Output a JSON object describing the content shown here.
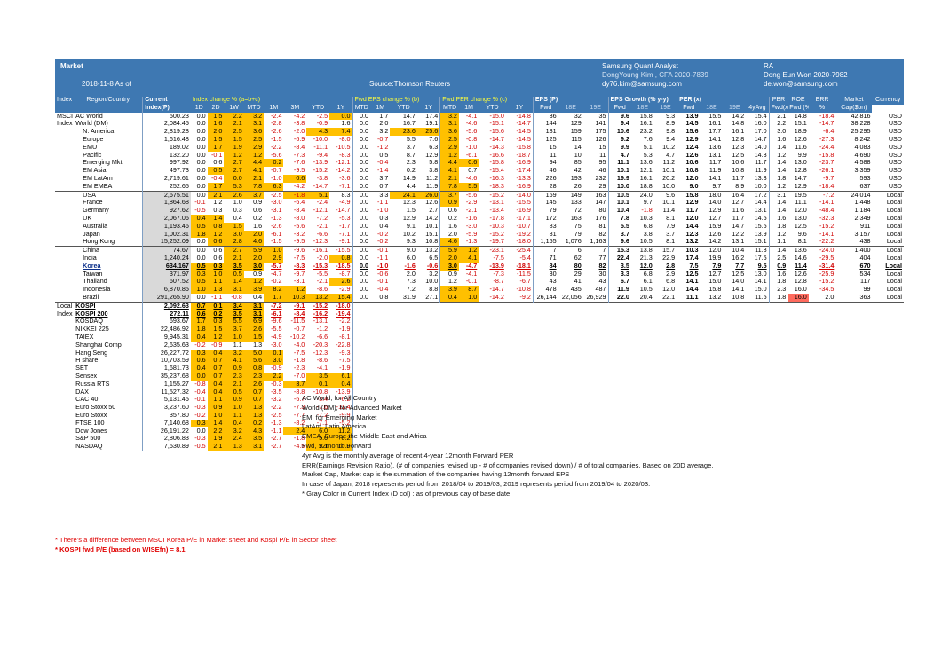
{
  "header": {
    "title": "Market",
    "date": "2018-11-8 As of",
    "source": "Source:Thomson Reuters",
    "analyst_title": "Samsung Quant Analyst",
    "analyst_name": "DongYoung Kim , CFA 2020-7839",
    "analyst_email": "dy76.kim@samsung.com",
    "ra_title": "RA",
    "ra_name": "Dong Eun Won 2020-7982",
    "ra_email": "de.won@samsung.com"
  },
  "group_headers": [
    "Index",
    "Region/Country",
    "Current",
    "Index change % (a=b+c)",
    "Fwd EPS change % (b)",
    "Fwd PER change % (c)",
    "EPS (P)",
    "EPS Growth (% y-y)",
    "PER (x)",
    "PBR",
    "ROE",
    "ERR",
    "Market",
    "Currency"
  ],
  "sub_headers": [
    "Index(P)",
    "1D",
    "2D",
    "1W",
    "MTD",
    "1M",
    "3M",
    "YTD",
    "1Y",
    "MTD",
    "1M",
    "YTD",
    "1Y",
    "MTD",
    "1M",
    "YTD",
    "1Y",
    "Fwd",
    "18E",
    "19E",
    "Fwd",
    "18E",
    "19E",
    "Fwd",
    "18E",
    "19E",
    "4yAvg",
    "Fwd(x)",
    "Fwd (%)",
    "%",
    "Cap($bn)"
  ],
  "rows": [
    [
      "MSCI",
      "AC World",
      "500.23",
      "0.0",
      "1.5",
      "2.2",
      "3.2",
      "-2.4",
      "-4.2",
      "-2.5",
      "0.0",
      "0.0",
      "1.7",
      "14.7",
      "17.4",
      "3.2",
      "-4.1",
      "-15.0",
      "-14.8",
      "36",
      "32",
      "35",
      "9.6",
      "15.8",
      "9.3",
      "13.9",
      "15.5",
      "14.2",
      "15.4",
      "2.1",
      "14.8",
      "-18.4",
      "42,816",
      "USD"
    ],
    [
      "Index",
      "World (DM)",
      "2,084.45",
      "0.0",
      "1.6",
      "2.1",
      "3.1",
      "-2.8",
      "-3.8",
      "-0.9",
      "1.6",
      "0.0",
      "2.0",
      "16.7",
      "19.1",
      "3.1",
      "-4.6",
      "-15.1",
      "-14.7",
      "144",
      "129",
      "141",
      "9.4",
      "16.1",
      "8.9",
      "14.5",
      "16.1",
      "14.8",
      "16.0",
      "2.2",
      "15.1",
      "-14.7",
      "38,228",
      "USD"
    ],
    [
      "",
      "N. America",
      "2,819.28",
      "0.0",
      "2.0",
      "2.5",
      "3.6",
      "-2.6",
      "-2.0",
      "4.3",
      "7.4",
      "0.0",
      "3.2",
      "23.6",
      "25.6",
      "3.6",
      "-5.6",
      "-15.6",
      "-14.5",
      "181",
      "159",
      "175",
      "10.6",
      "23.2",
      "9.8",
      "15.6",
      "17.7",
      "16.1",
      "17.0",
      "3.0",
      "18.9",
      "-6.4",
      "25,295",
      "USD"
    ],
    [
      "",
      "Europe",
      "1,616.48",
      "0.0",
      "1.5",
      "1.5",
      "2.5",
      "-1.5",
      "-6.9",
      "-10.0",
      "-8.0",
      "0.0",
      "-0.7",
      "5.5",
      "7.6",
      "2.5",
      "-0.8",
      "-14.7",
      "-14.5",
      "125",
      "115",
      "126",
      "9.2",
      "7.6",
      "9.4",
      "12.9",
      "14.1",
      "12.8",
      "14.7",
      "1.6",
      "12.6",
      "-27.3",
      "8,242",
      "USD"
    ],
    [
      "",
      "EMU",
      "189.02",
      "0.0",
      "1.7",
      "1.9",
      "2.9",
      "-2.2",
      "-8.4",
      "-11.1",
      "-10.5",
      "0.0",
      "-1.2",
      "3.7",
      "6.3",
      "2.9",
      "-1.0",
      "-14.3",
      "-15.8",
      "15",
      "14",
      "15",
      "9.9",
      "5.1",
      "10.2",
      "12.4",
      "13.6",
      "12.3",
      "14.0",
      "1.4",
      "11.6",
      "-24.4",
      "4,083",
      "USD"
    ],
    [
      "",
      "Pacific",
      "132.20",
      "0.0",
      "-0.1",
      "1.2",
      "1.2",
      "-5.6",
      "-7.3",
      "-9.4",
      "-8.3",
      "0.0",
      "0.5",
      "8.7",
      "12.9",
      "1.2",
      "-6.1",
      "-16.6",
      "-18.7",
      "11",
      "10",
      "11",
      "4.7",
      "5.3",
      "4.7",
      "12.6",
      "13.1",
      "12.5",
      "14.3",
      "1.2",
      "9.9",
      "-15.8",
      "4,690",
      "USD"
    ],
    [
      "",
      "Emerging Mkt",
      "997.92",
      "0.0",
      "0.6",
      "2.7",
      "4.4",
      "0.2",
      "-7.6",
      "-13.9",
      "-12.1",
      "0.0",
      "-0.4",
      "2.3",
      "5.8",
      "4.4",
      "0.6",
      "-15.8",
      "-16.9",
      "94",
      "85",
      "95",
      "11.1",
      "13.6",
      "11.2",
      "10.6",
      "11.7",
      "10.6",
      "11.7",
      "1.4",
      "13.0",
      "-23.7",
      "4,588",
      "USD"
    ],
    [
      "",
      "EM Asia",
      "497.73",
      "0.0",
      "0.5",
      "2.7",
      "4.1",
      "-0.7",
      "-9.5",
      "-15.2",
      "-14.2",
      "0.0",
      "-1.4",
      "0.2",
      "3.8",
      "4.1",
      "0.7",
      "-15.4",
      "-17.4",
      "46",
      "42",
      "46",
      "10.1",
      "12.1",
      "10.1",
      "10.8",
      "11.9",
      "10.8",
      "11.9",
      "1.4",
      "12.8",
      "-26.1",
      "3,359",
      "USD"
    ],
    [
      "",
      "EM LatAm",
      "2,719.61",
      "0.0",
      "-0.4",
      "0.0",
      "2.1",
      "-1.0",
      "0.6",
      "-3.8",
      "-3.6",
      "0.0",
      "3.7",
      "14.9",
      "11.2",
      "2.1",
      "-4.6",
      "-16.3",
      "-13.3",
      "226",
      "193",
      "232",
      "19.9",
      "16.1",
      "20.2",
      "12.0",
      "14.1",
      "11.7",
      "13.3",
      "1.8",
      "14.7",
      "-9.7",
      "593",
      "USD"
    ],
    [
      "",
      "EM EMEA",
      "252.65",
      "0.0",
      "1.7",
      "5.3",
      "7.8",
      "6.3",
      "-4.2",
      "-14.7",
      "-7.1",
      "0.0",
      "0.7",
      "4.4",
      "11.9",
      "7.8",
      "5.5",
      "-18.3",
      "-16.9",
      "28",
      "26",
      "29",
      "10.0",
      "18.8",
      "10.0",
      "9.0",
      "9.7",
      "8.9",
      "10.0",
      "1.2",
      "12.9",
      "-18.4",
      "637",
      "USD"
    ],
    [
      "",
      "USA",
      "2,675.51",
      "0.0",
      "2.1",
      "2.6",
      "3.7",
      "-2.5",
      "-1.8",
      "5.1",
      "8.3",
      "0.0",
      "3.3",
      "24.1",
      "26.0",
      "3.7",
      "-5.6",
      "-15.2",
      "-14.0",
      "169",
      "149",
      "163",
      "10.5",
      "24.0",
      "9.6",
      "15.8",
      "18.0",
      "16.4",
      "17.2",
      "3.1",
      "19.5",
      "-7.2",
      "24,014",
      "Local"
    ],
    [
      "",
      "France",
      "1,864.68",
      "-0.1",
      "1.2",
      "1.0",
      "0.9",
      "-3.0",
      "-6.4",
      "-2.4",
      "-4.9",
      "0.0",
      "-1.1",
      "12.3",
      "12.6",
      "0.9",
      "-2.9",
      "-13.1",
      "-15.5",
      "145",
      "133",
      "147",
      "10.1",
      "9.7",
      "10.1",
      "12.9",
      "14.0",
      "12.7",
      "14.4",
      "1.4",
      "11.1",
      "-14.1",
      "1,448",
      "Local"
    ],
    [
      "",
      "Germany",
      "927.62",
      "-0.5",
      "0.3",
      "0.3",
      "0.6",
      "-3.1",
      "-8.4",
      "-12.1",
      "-14.7",
      "0.0",
      "-1.0",
      "1.5",
      "2.7",
      "0.6",
      "-2.1",
      "-13.4",
      "-16.9",
      "79",
      "72",
      "80",
      "10.4",
      "-1.8",
      "11.4",
      "11.7",
      "12.9",
      "11.6",
      "13.1",
      "1.4",
      "12.0",
      "-48.4",
      "1,184",
      "Local"
    ],
    [
      "",
      "UK",
      "2,067.06",
      "0.4",
      "1.4",
      "0.4",
      "0.2",
      "-1.3",
      "-8.0",
      "-7.2",
      "-5.3",
      "0.0",
      "0.3",
      "12.9",
      "14.2",
      "0.2",
      "-1.6",
      "-17.8",
      "-17.1",
      "172",
      "163",
      "176",
      "7.8",
      "10.3",
      "8.1",
      "12.0",
      "12.7",
      "11.7",
      "14.5",
      "1.6",
      "13.0",
      "-32.3",
      "2,349",
      "Local"
    ],
    [
      "",
      "Australia",
      "1,193.46",
      "0.5",
      "0.8",
      "1.5",
      "1.6",
      "-2.6",
      "-5.6",
      "-2.1",
      "-1.7",
      "0.0",
      "0.4",
      "9.1",
      "10.1",
      "1.6",
      "-3.0",
      "-10.3",
      "-10.7",
      "83",
      "75",
      "81",
      "5.5",
      "6.8",
      "7.9",
      "14.4",
      "15.9",
      "14.7",
      "15.5",
      "1.8",
      "12.5",
      "-15.2",
      "911",
      "Local"
    ],
    [
      "",
      "Japan",
      "1,002.31",
      "1.8",
      "1.2",
      "3.0",
      "2.0",
      "-6.1",
      "-3.2",
      "-6.6",
      "-7.1",
      "0.0",
      "-0.2",
      "10.2",
      "15.1",
      "2.0",
      "-5.9",
      "-15.2",
      "-19.2",
      "81",
      "79",
      "82",
      "3.7",
      "3.8",
      "3.7",
      "12.3",
      "12.6",
      "12.2",
      "13.9",
      "1.2",
      "9.6",
      "-14.1",
      "3,157",
      "Local"
    ],
    [
      "",
      "Hong Kong",
      "15,252.09",
      "0.0",
      "0.6",
      "2.8",
      "4.6",
      "-1.5",
      "-9.5",
      "-12.3",
      "-9.1",
      "0.0",
      "-0.2",
      "9.3",
      "10.8",
      "4.6",
      "-1.3",
      "-19.7",
      "-18.0",
      "1,155",
      "1,076",
      "1,163",
      "9.6",
      "10.5",
      "8.1",
      "13.2",
      "14.2",
      "13.1",
      "15.1",
      "1.1",
      "8.1",
      "-22.2",
      "438",
      "Local"
    ],
    [
      "",
      "China",
      "74.67",
      "0.0",
      "0.6",
      "2.7",
      "5.9",
      "1.0",
      "-9.6",
      "-16.1",
      "-15.5",
      "0.0",
      "-0.1",
      "9.0",
      "13.2",
      "5.9",
      "1.2",
      "-23.1",
      "-25.4",
      "7",
      "6",
      "7",
      "15.3",
      "13.8",
      "15.7",
      "10.3",
      "12.0",
      "10.4",
      "11.3",
      "1.4",
      "13.6",
      "-24.0",
      "1,400",
      "Local"
    ],
    [
      "",
      "India",
      "1,240.24",
      "0.0",
      "0.6",
      "2.1",
      "2.0",
      "2.9",
      "-7.5",
      "-2.0",
      "0.8",
      "0.0",
      "-1.1",
      "6.0",
      "6.5",
      "2.0",
      "4.1",
      "-7.5",
      "-5.4",
      "71",
      "62",
      "77",
      "22.4",
      "21.3",
      "22.9",
      "17.4",
      "19.9",
      "16.2",
      "17.5",
      "2.5",
      "14.6",
      "-29.5",
      "404",
      "Local"
    ],
    [
      "",
      "Korea",
      "634.167",
      "0.5",
      "0.3",
      "3.5",
      "3.0",
      "-5.7",
      "-8.3",
      "-15.3",
      "-18.5",
      "0.0",
      "-1.0",
      "-1.6",
      "-0.6",
      "3.0",
      "-4.7",
      "-13.9",
      "-18.1",
      "84",
      "80",
      "82",
      "3.5",
      "12.0",
      "2.8",
      "7.5",
      "7.9",
      "7.7",
      "9.5",
      "0.9",
      "11.4",
      "-31.4",
      "670",
      "Local"
    ],
    [
      "",
      "Taiwan",
      "371.97",
      "0.3",
      "1.0",
      "0.5",
      "0.9",
      "-4.7",
      "-9.7",
      "-5.5",
      "-8.7",
      "0.0",
      "-0.6",
      "2.0",
      "3.2",
      "0.9",
      "-4.1",
      "-7.3",
      "-11.5",
      "30",
      "29",
      "30",
      "3.3",
      "6.8",
      "2.9",
      "12.5",
      "12.7",
      "12.5",
      "13.0",
      "1.6",
      "12.6",
      "-25.9",
      "534",
      "Local"
    ],
    [
      "",
      "Thailand",
      "607.52",
      "0.5",
      "1.1",
      "1.4",
      "1.2",
      "-0.2",
      "-3.1",
      "-2.1",
      "2.6",
      "0.0",
      "-0.1",
      "7.3",
      "10.0",
      "1.2",
      "-0.1",
      "-8.7",
      "-6.7",
      "43",
      "41",
      "43",
      "6.7",
      "6.1",
      "6.8",
      "14.1",
      "15.0",
      "14.0",
      "14.1",
      "1.8",
      "12.8",
      "-15.2",
      "117",
      "Local"
    ],
    [
      "",
      "Indonesia",
      "6,870.85",
      "1.0",
      "1.3",
      "3.1",
      "3.9",
      "8.2",
      "1.2",
      "-8.6",
      "-2.9",
      "0.0",
      "-0.4",
      "7.2",
      "8.8",
      "3.9",
      "8.7",
      "-14.7",
      "-10.8",
      "478",
      "435",
      "487",
      "11.9",
      "10.5",
      "12.0",
      "14.4",
      "15.8",
      "14.1",
      "15.0",
      "2.3",
      "16.0",
      "-34.5",
      "99",
      "Local"
    ],
    [
      "",
      "Brazil",
      "291,265.90",
      "0.0",
      "-1.1",
      "-0.8",
      "0.4",
      "1.7",
      "10.3",
      "13.2",
      "15.4",
      "0.0",
      "0.8",
      "31.9",
      "27.1",
      "0.4",
      "1.0",
      "-14.2",
      "-9.2",
      "26,144",
      "22,056",
      "26,929",
      "22.0",
      "20.4",
      "22.1",
      "11.1",
      "13.2",
      "10.8",
      "11.5",
      "1.8",
      "16.0",
      "2.0",
      "363",
      "Local"
    ],
    [
      "Local",
      "KOSPI",
      "2,092.63",
      "0.7",
      "0.1",
      "3.4",
      "3.1",
      "-7.2",
      "-9.1",
      "-15.2",
      "-18.0"
    ],
    [
      "Index",
      "KOSPI 200",
      "272.11",
      "0.6",
      "0.2",
      "3.5",
      "3.1",
      "-6.1",
      "-8.4",
      "-16.2",
      "-19.4"
    ],
    [
      "",
      "KOSDAQ",
      "693.67",
      "1.7",
      "0.3",
      "5.5",
      "6.9",
      "-9.6",
      "-11.5",
      "-13.1",
      "-2.2"
    ],
    [
      "",
      "NIKKEI 225",
      "22,486.92",
      "1.8",
      "1.5",
      "3.7",
      "2.6",
      "-5.5",
      "-0.7",
      "-1.2",
      "-1.9"
    ],
    [
      "",
      "TAIEX",
      "9,945.31",
      "0.4",
      "1.2",
      "1.0",
      "1.5",
      "-4.9",
      "-10.2",
      "-6.6",
      "-8.1"
    ],
    [
      "",
      "Shanghai Comp",
      "2,635.63",
      "-0.2",
      "-0.9",
      "1.1",
      "1.3",
      "-3.0",
      "-4.0",
      "-20.3",
      "-22.8"
    ],
    [
      "",
      "Hang Seng",
      "26,227.72",
      "0.3",
      "0.4",
      "3.2",
      "5.0",
      "0.1",
      "-7.5",
      "-12.3",
      "-9.3"
    ],
    [
      "",
      "H share",
      "10,703.59",
      "0.6",
      "0.7",
      "4.1",
      "5.6",
      "3.0",
      "-1.8",
      "-8.6",
      "-7.5"
    ],
    [
      "",
      "SET",
      "1,681.73",
      "0.4",
      "0.7",
      "0.9",
      "0.8",
      "-0.9",
      "-2.3",
      "-4.1",
      "-1.9"
    ],
    [
      "",
      "Sensex",
      "35,237.68",
      "0.0",
      "0.7",
      "2.3",
      "2.3",
      "2.2",
      "-7.0",
      "3.5",
      "6.1"
    ],
    [
      "",
      "Russia RTS",
      "1,155.27",
      "-0.8",
      "0.4",
      "2.1",
      "2.6",
      "-0.3",
      "3.7",
      "0.1",
      "0.4"
    ],
    [
      "",
      "DAX",
      "11,527.32",
      "-0.4",
      "0.4",
      "0.5",
      "0.7",
      "-3.5",
      "-8.8",
      "-10.8",
      "-13.9"
    ],
    [
      "",
      "CAC 40",
      "5,131.45",
      "-0.1",
      "1.1",
      "0.9",
      "0.7",
      "-3.2",
      "-6.7",
      "-3.4",
      "-6.2"
    ],
    [
      "",
      "Euro Stoxx 50",
      "3,237.60",
      "-0.3",
      "0.9",
      "1.0",
      "1.3",
      "-2.2",
      "-7.3",
      "-7.6",
      "-11.4"
    ],
    [
      "",
      "Euro Stoxx",
      "357.80",
      "-0.2",
      "1.0",
      "1.1",
      "1.3",
      "-2.5",
      "-7.7",
      "-7.2",
      "-9.9"
    ],
    [
      "",
      "FTSE 100",
      "7,140.68",
      "0.3",
      "1.4",
      "0.4",
      "0.2",
      "-1.3",
      "-8.2",
      "-7.1",
      "-5.2"
    ],
    [
      "",
      "Dow Jones",
      "26,191.22",
      "0.0",
      "2.2",
      "3.2",
      "4.3",
      "-1.1",
      "2.4",
      "6.0",
      "11.2"
    ],
    [
      "",
      "S&P 500",
      "2,806.83",
      "-0.3",
      "1.9",
      "2.4",
      "3.5",
      "-2.7",
      "-1.8",
      "5.0",
      "8.2"
    ],
    [
      "",
      "NASDAQ",
      "7,530.89",
      "-0.5",
      "2.1",
      "1.3",
      "3.1",
      "-2.7",
      "-4.5",
      "9.1",
      "10.9"
    ]
  ],
  "notes": [
    "AC World, for All Country",
    "World (DM), for Advanced Market",
    "EM, for Emerging Market",
    "LatAm, Latin America",
    "EMEA, Europe the Middle East and Africa",
    "Fwd, 12month Forward",
    "4yr Avg is the monthly average of recent 4-year 12month Forward PER",
    "ERR(Earnings Revision Ratio), (# of companies revised up - # of companies revised down) / # of total companies. Based on 20D average.",
    "Market Cap, Market cap is the summation of the companies having 12month forward EPS",
    "In case of Japan, 2018 represents period from 2018/04 to 2019/03; 2019 represents period from 2019/04 to 2020/03.",
    "* Gray Color in Current Index (D col) : as of previous day of base date"
  ],
  "footnotes": [
    "* There's a difference between MSCI Korea P/E in Market sheet and Kospi P/E in Sector sheet",
    "* KOSPI fwd P/E (based on WISEfn) = 8.1"
  ],
  "colors": {
    "header_blue": "#3e78b2",
    "header_yellow_text": "#ffff3a",
    "highlight_orange": "#ffc000",
    "highlight_yellow": "#ffff00",
    "highlight_red": "#ff6b5e",
    "negative_text": "#d00000",
    "footnote_red": "#e00000"
  }
}
